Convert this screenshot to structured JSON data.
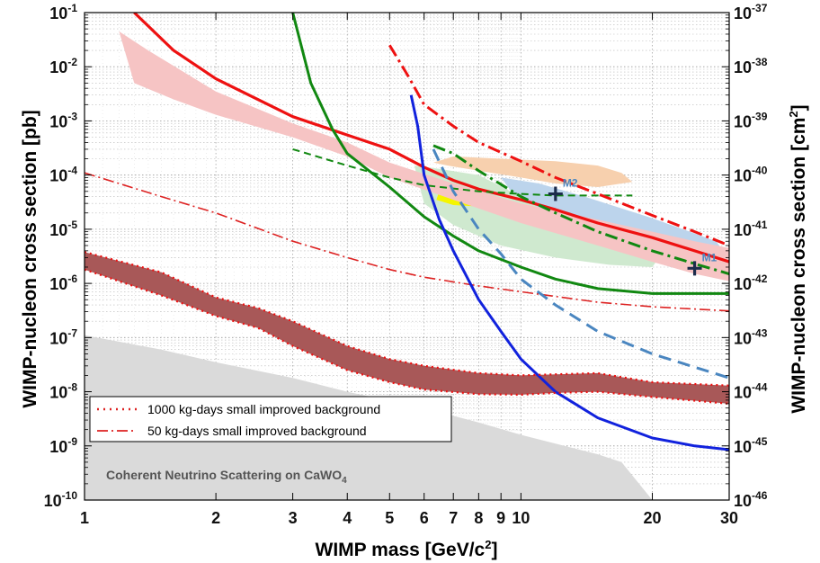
{
  "chart_data": {
    "type": "line",
    "xlabel": "WIMP mass [GeV/c2]",
    "ylabel": "WIMP-nucleon cross section [pb]",
    "ylabel_right": "WIMP-nucleon cross section [cm2]",
    "x_scale": "log",
    "y_scale": "log",
    "xlim": [
      1,
      30
    ],
    "ylim": [
      1e-10,
      0.1
    ],
    "grid": true,
    "x_ticks": [
      {
        "v": 1,
        "label": "1"
      },
      {
        "v": 2,
        "label": "2"
      },
      {
        "v": 3,
        "label": "3"
      },
      {
        "v": 4,
        "label": "4"
      },
      {
        "v": 5,
        "label": "5"
      },
      {
        "v": 6,
        "label": "6"
      },
      {
        "v": 7,
        "label": "7"
      },
      {
        "v": 8,
        "label": "8"
      },
      {
        "v": 9,
        "label": "9"
      },
      {
        "v": 10,
        "label": "10"
      },
      {
        "v": 20,
        "label": "20"
      },
      {
        "v": 30,
        "label": "30"
      }
    ],
    "y_ticks_left": [
      {
        "exp": -1,
        "label": "10^-1"
      },
      {
        "exp": -2,
        "label": "10^-2"
      },
      {
        "exp": -3,
        "label": "10^-3"
      },
      {
        "exp": -4,
        "label": "10^-4"
      },
      {
        "exp": -5,
        "label": "10^-5"
      },
      {
        "exp": -6,
        "label": "10^-6"
      },
      {
        "exp": -7,
        "label": "10^-7"
      },
      {
        "exp": -8,
        "label": "10^-8"
      },
      {
        "exp": -9,
        "label": "10^-9"
      },
      {
        "exp": -10,
        "label": "10^-10"
      }
    ],
    "y_ticks_right": [
      {
        "exp": -1,
        "label": "10^-37"
      },
      {
        "exp": -2,
        "label": "10^-38"
      },
      {
        "exp": -3,
        "label": "10^-39"
      },
      {
        "exp": -4,
        "label": "10^-40"
      },
      {
        "exp": -5,
        "label": "10^-41"
      },
      {
        "exp": -6,
        "label": "10^-42"
      },
      {
        "exp": -7,
        "label": "10^-43"
      },
      {
        "exp": -8,
        "label": "10^-44"
      },
      {
        "exp": -9,
        "label": "10^-45"
      },
      {
        "exp": -10,
        "label": "10^-46"
      }
    ],
    "legend": {
      "placement": "lower-left",
      "entries": [
        {
          "label": "1000 kg-days small improved background",
          "color": "#dd2222",
          "style": "dotted"
        },
        {
          "label": "50 kg-days small improved background",
          "color": "#dd2222",
          "style": "dashdot"
        }
      ]
    },
    "annotations": {
      "neutrino_floor": "Coherent Neutrino Scattering on CaWO4",
      "M1": "M1",
      "M2": "M2"
    },
    "colors": {
      "red": "#ee1111",
      "green": "#118811",
      "blue": "#1122dd",
      "steelblue": "#4a86c0",
      "band_1000": "#a85858",
      "pink_band": "#f6c4c4",
      "light_green": "#cfe9cf",
      "light_blue": "#bcd4ec",
      "orange": "#f7d0ae",
      "yellow": "#f5f500",
      "neutrino_gray": "#dadada",
      "marker": "#1c2c4c",
      "right_label": "#4a86c0"
    },
    "regions": [
      {
        "name": "neutrino-floor",
        "fill": "#dadada",
        "points": [
          [
            1,
            1.1e-07
          ],
          [
            1.5,
            6e-08
          ],
          [
            2,
            3.5e-08
          ],
          [
            3,
            1.8e-08
          ],
          [
            4,
            1e-08
          ],
          [
            6,
            5e-09
          ],
          [
            8,
            2.7e-09
          ],
          [
            10,
            1.6e-09
          ],
          [
            12,
            1.1e-09
          ],
          [
            15,
            7e-10
          ],
          [
            17,
            5e-10
          ],
          [
            20,
            1e-10
          ],
          [
            1,
            1e-10
          ]
        ]
      },
      {
        "name": "orange-region",
        "fill": "#f7d0ae",
        "points": [
          [
            6.3,
            0.00017
          ],
          [
            7,
            0.00022
          ],
          [
            9,
            0.0002
          ],
          [
            12,
            0.00018
          ],
          [
            15,
            0.00015
          ],
          [
            17,
            0.00011
          ],
          [
            18,
            7.5e-05
          ],
          [
            15,
            6e-05
          ],
          [
            12,
            7e-05
          ],
          [
            10,
            9e-05
          ],
          [
            8,
            0.00012
          ],
          [
            6.8,
            0.00015
          ]
        ]
      },
      {
        "name": "green-region",
        "fill": "#cfe9cf",
        "points": [
          [
            5.7,
            0.00015
          ],
          [
            6.5,
            0.00013
          ],
          [
            8,
            0.0001
          ],
          [
            10,
            4e-05
          ],
          [
            14,
            1.5e-05
          ],
          [
            18,
            1e-05
          ],
          [
            22,
            6e-06
          ],
          [
            20,
            2e-06
          ],
          [
            16,
            2.2e-06
          ],
          [
            12,
            3e-06
          ],
          [
            9,
            5e-06
          ],
          [
            7,
            1.2e-05
          ],
          [
            6,
            3e-05
          ]
        ]
      },
      {
        "name": "blue-region",
        "fill": "#bcd4ec",
        "points": [
          [
            9,
            9e-05
          ],
          [
            11,
            7e-05
          ],
          [
            14,
            4e-05
          ],
          [
            20,
            1.6e-05
          ],
          [
            28,
            6e-06
          ],
          [
            30,
            2.8e-06
          ],
          [
            27,
            1.5e-06
          ],
          [
            22,
            2e-06
          ],
          [
            18,
            4e-06
          ],
          [
            14,
            1e-05
          ],
          [
            11,
            2.5e-05
          ],
          [
            9.5,
            5e-05
          ]
        ]
      },
      {
        "name": "yellow-region",
        "fill": "#f5f500",
        "points": [
          [
            6.5,
            5e-05
          ],
          [
            7.5,
            4.8e-05
          ],
          [
            9,
            3.5e-05
          ],
          [
            10,
            3e-05
          ],
          [
            9,
            2.5e-05
          ],
          [
            7,
            2.8e-05
          ],
          [
            6.4,
            3.5e-05
          ]
        ]
      }
    ],
    "bands": [
      {
        "name": "pink-band",
        "fill": "#f6c4c4",
        "upper": [
          [
            1.2,
            0.045
          ],
          [
            1.4,
            0.02
          ],
          [
            2,
            0.0035
          ],
          [
            3,
            0.0009
          ],
          [
            4,
            0.0004
          ],
          [
            5,
            0.00017
          ],
          [
            7,
            7e-05
          ],
          [
            10,
            3e-05
          ],
          [
            15,
            1.5e-05
          ],
          [
            20,
            9e-06
          ],
          [
            25,
            6e-06
          ],
          [
            30,
            4.5e-06
          ]
        ],
        "lower": [
          [
            1.3,
            0.005
          ],
          [
            1.6,
            0.0025
          ],
          [
            2,
            0.0013
          ],
          [
            3,
            0.0005
          ],
          [
            4,
            0.00022
          ],
          [
            5,
            9e-05
          ],
          [
            7,
            3.5e-05
          ],
          [
            10,
            1.3e-05
          ],
          [
            15,
            5e-06
          ],
          [
            20,
            2.5e-06
          ],
          [
            25,
            1.5e-06
          ],
          [
            30,
            1.1e-06
          ]
        ]
      },
      {
        "name": "band-1000kgd",
        "fill": "#a85858",
        "upper": [
          [
            1,
            3.8e-06
          ],
          [
            1.5,
            1.6e-06
          ],
          [
            2,
            5.5e-07
          ],
          [
            2.5,
            3.5e-07
          ],
          [
            3,
            2e-07
          ],
          [
            4,
            7e-08
          ],
          [
            5,
            4e-08
          ],
          [
            6,
            3e-08
          ],
          [
            8,
            2.2e-08
          ],
          [
            10,
            2e-08
          ],
          [
            12,
            2.1e-08
          ],
          [
            15,
            2.2e-08
          ],
          [
            20,
            1.5e-08
          ],
          [
            30,
            1.3e-08
          ]
        ],
        "lower": [
          [
            1,
            1.8e-06
          ],
          [
            1.5,
            6e-07
          ],
          [
            2,
            2.5e-07
          ],
          [
            2.5,
            1.5e-07
          ],
          [
            3,
            7e-08
          ],
          [
            4,
            2.5e-08
          ],
          [
            5,
            1.5e-08
          ],
          [
            6,
            1.1e-08
          ],
          [
            8,
            9e-09
          ],
          [
            10,
            8.8e-09
          ],
          [
            12,
            9.5e-09
          ],
          [
            15,
            1e-08
          ],
          [
            20,
            8e-09
          ],
          [
            30,
            6e-09
          ]
        ]
      }
    ],
    "series": [
      {
        "color": "#ee1111",
        "width": 3.2,
        "dash": "",
        "values": [
          [
            1.3,
            0.1
          ],
          [
            1.6,
            0.02
          ],
          [
            2,
            0.006
          ],
          [
            3,
            0.0012
          ],
          [
            4,
            0.00055
          ],
          [
            5,
            0.0003
          ],
          [
            6,
            0.00014
          ],
          [
            7,
            8e-05
          ],
          [
            8,
            5.5e-05
          ],
          [
            10,
            3.5e-05
          ],
          [
            12,
            2.3e-05
          ],
          [
            15,
            1.3e-05
          ],
          [
            20,
            7e-06
          ],
          [
            25,
            4e-06
          ],
          [
            30,
            2.5e-06
          ]
        ]
      },
      {
        "color": "#118811",
        "width": 3,
        "dash": "",
        "values": [
          [
            3,
            0.1
          ],
          [
            3.3,
            0.005
          ],
          [
            3.7,
            0.0007
          ],
          [
            4,
            0.00025
          ],
          [
            5,
            6e-05
          ],
          [
            6,
            1.7e-05
          ],
          [
            7,
            7.5e-06
          ],
          [
            8,
            4e-06
          ],
          [
            10,
            2e-06
          ],
          [
            12,
            1.2e-06
          ],
          [
            15,
            8e-07
          ],
          [
            20,
            6.5e-07
          ],
          [
            30,
            6.5e-07
          ]
        ]
      },
      {
        "color": "#118811",
        "width": 2,
        "dash": "8,5",
        "values": [
          [
            3,
            0.0003
          ],
          [
            4,
            0.00015
          ],
          [
            5,
            9e-05
          ],
          [
            6,
            6.5e-05
          ],
          [
            8,
            5e-05
          ],
          [
            10,
            4.5e-05
          ],
          [
            12,
            4.2e-05
          ],
          [
            15,
            4.2e-05
          ],
          [
            18,
            4.2e-05
          ]
        ]
      },
      {
        "color": "#118811",
        "width": 3,
        "dash": "14,5,3,5",
        "values": [
          [
            6.3,
            0.00035
          ],
          [
            7,
            0.00025
          ],
          [
            8,
            0.00012
          ],
          [
            10,
            4e-05
          ],
          [
            12,
            2e-05
          ],
          [
            15,
            9e-06
          ],
          [
            20,
            4e-06
          ],
          [
            25,
            2.3e-06
          ],
          [
            30,
            1.5e-06
          ]
        ]
      },
      {
        "color": "#ee1111",
        "width": 3,
        "dash": "14,5,3,5",
        "values": [
          [
            5,
            0.025
          ],
          [
            5.5,
            0.007
          ],
          [
            6,
            0.002
          ],
          [
            7,
            0.0008
          ],
          [
            8,
            0.0004
          ],
          [
            10,
            0.00018
          ],
          [
            12,
            9e-05
          ],
          [
            15,
            4.5e-05
          ],
          [
            20,
            1.8e-05
          ],
          [
            25,
            9e-06
          ],
          [
            30,
            5e-06
          ]
        ]
      },
      {
        "color": "#dd2222",
        "width": 1.6,
        "dash": "12,4,2,4",
        "values": [
          [
            1,
            0.00011
          ],
          [
            1.5,
            4e-05
          ],
          [
            2,
            2e-05
          ],
          [
            3,
            6e-06
          ],
          [
            4,
            3e-06
          ],
          [
            5,
            1.8e-06
          ],
          [
            6,
            1.3e-06
          ],
          [
            8,
            9e-07
          ],
          [
            10,
            7e-07
          ],
          [
            15,
            4.5e-07
          ],
          [
            20,
            3.7e-07
          ],
          [
            30,
            3.1e-07
          ]
        ]
      },
      {
        "color": "#4a86c0",
        "width": 3,
        "dash": "14,8",
        "values": [
          [
            6.3,
            0.0003
          ],
          [
            7,
            5e-05
          ],
          [
            8,
            1e-05
          ],
          [
            9,
            3.5e-06
          ],
          [
            10,
            1.2e-06
          ],
          [
            12,
            4e-07
          ],
          [
            15,
            1.3e-07
          ],
          [
            20,
            5e-08
          ],
          [
            30,
            1.8e-08
          ]
        ]
      },
      {
        "color": "#1122dd",
        "width": 3,
        "dash": "",
        "values": [
          [
            5.6,
            0.003
          ],
          [
            5.8,
            0.0008
          ],
          [
            6,
            0.0001
          ],
          [
            6.5,
            1.5e-05
          ],
          [
            7,
            4e-06
          ],
          [
            8,
            5e-07
          ],
          [
            9,
            1.3e-07
          ],
          [
            10,
            4e-08
          ],
          [
            12,
            1e-08
          ],
          [
            15,
            3.3e-09
          ],
          [
            20,
            1.4e-09
          ],
          [
            25,
            1e-09
          ],
          [
            30,
            8.5e-10
          ]
        ]
      },
      {
        "color": "#ee1111",
        "width": 2.2,
        "dash": "2,4",
        "values": [
          [
            1,
            3.8e-06
          ],
          [
            1.5,
            1.6e-06
          ],
          [
            2,
            5.5e-07
          ],
          [
            2.5,
            3.5e-07
          ],
          [
            3,
            2e-07
          ],
          [
            4,
            7e-08
          ],
          [
            5,
            4e-08
          ],
          [
            6,
            3e-08
          ],
          [
            8,
            2.2e-08
          ],
          [
            10,
            2e-08
          ],
          [
            12,
            2.1e-08
          ],
          [
            15,
            2.2e-08
          ],
          [
            20,
            1.5e-08
          ],
          [
            30,
            1.3e-08
          ]
        ]
      },
      {
        "color": "#ee1111",
        "width": 2.2,
        "dash": "2,4",
        "values": [
          [
            1,
            1.8e-06
          ],
          [
            1.5,
            6e-07
          ],
          [
            2,
            2.5e-07
          ],
          [
            2.5,
            1.5e-07
          ],
          [
            3,
            7e-08
          ],
          [
            4,
            2.5e-08
          ],
          [
            5,
            1.5e-08
          ],
          [
            6,
            1.1e-08
          ],
          [
            8,
            9e-09
          ],
          [
            10,
            8.8e-09
          ],
          [
            12,
            9.5e-09
          ],
          [
            15,
            1e-08
          ],
          [
            20,
            8e-09
          ],
          [
            30,
            6e-09
          ]
        ]
      }
    ],
    "markers": [
      {
        "label": "M2",
        "x": 12,
        "y": 4.5e-05
      },
      {
        "label": "M1",
        "x": 25,
        "y": 1.9e-06
      }
    ]
  }
}
